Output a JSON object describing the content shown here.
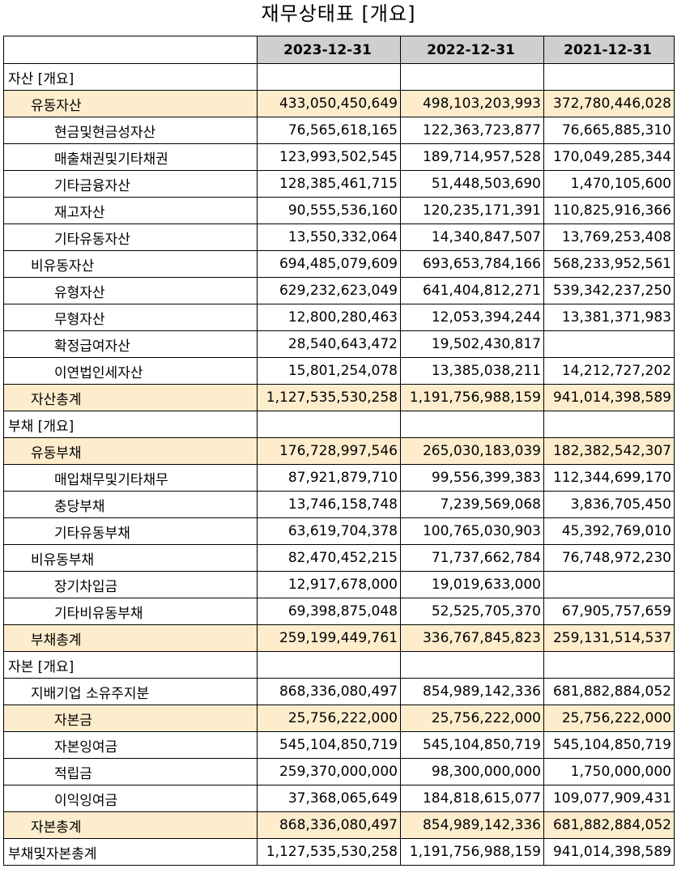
{
  "title": "재무상태표 [개요]",
  "columns": [
    "2023-12-31",
    "2022-12-31",
    "2021-12-31"
  ],
  "rows": [
    {
      "label": "자산 [개요]",
      "level": 0,
      "highlight": false,
      "values": [
        "",
        "",
        ""
      ]
    },
    {
      "label": "유동자산",
      "level": 1,
      "highlight": true,
      "values": [
        "433,050,450,649",
        "498,103,203,993",
        "372,780,446,028"
      ]
    },
    {
      "label": "현금및현금성자산",
      "level": 2,
      "highlight": false,
      "values": [
        "76,565,618,165",
        "122,363,723,877",
        "76,665,885,310"
      ]
    },
    {
      "label": "매출채권및기타채권",
      "level": 2,
      "highlight": false,
      "values": [
        "123,993,502,545",
        "189,714,957,528",
        "170,049,285,344"
      ]
    },
    {
      "label": "기타금융자산",
      "level": 2,
      "highlight": false,
      "values": [
        "128,385,461,715",
        "51,448,503,690",
        "1,470,105,600"
      ]
    },
    {
      "label": "재고자산",
      "level": 2,
      "highlight": false,
      "values": [
        "90,555,536,160",
        "120,235,171,391",
        "110,825,916,366"
      ]
    },
    {
      "label": "기타유동자산",
      "level": 2,
      "highlight": false,
      "values": [
        "13,550,332,064",
        "14,340,847,507",
        "13,769,253,408"
      ]
    },
    {
      "label": "비유동자산",
      "level": 1,
      "highlight": false,
      "values": [
        "694,485,079,609",
        "693,653,784,166",
        "568,233,952,561"
      ]
    },
    {
      "label": "유형자산",
      "level": 2,
      "highlight": false,
      "values": [
        "629,232,623,049",
        "641,404,812,271",
        "539,342,237,250"
      ]
    },
    {
      "label": "무형자산",
      "level": 2,
      "highlight": false,
      "values": [
        "12,800,280,463",
        "12,053,394,244",
        "13,381,371,983"
      ]
    },
    {
      "label": "확정급여자산",
      "level": 2,
      "highlight": false,
      "values": [
        "28,540,643,472",
        "19,502,430,817",
        ""
      ]
    },
    {
      "label": "이연법인세자산",
      "level": 2,
      "highlight": false,
      "values": [
        "15,801,254,078",
        "13,385,038,211",
        "14,212,727,202"
      ]
    },
    {
      "label": "자산총계",
      "level": 1,
      "highlight": true,
      "values": [
        "1,127,535,530,258",
        "1,191,756,988,159",
        "941,014,398,589"
      ]
    },
    {
      "label": "부채 [개요]",
      "level": 0,
      "highlight": false,
      "values": [
        "",
        "",
        ""
      ]
    },
    {
      "label": "유동부채",
      "level": 1,
      "highlight": true,
      "values": [
        "176,728,997,546",
        "265,030,183,039",
        "182,382,542,307"
      ]
    },
    {
      "label": "매입채무및기타채무",
      "level": 2,
      "highlight": false,
      "values": [
        "87,921,879,710",
        "99,556,399,383",
        "112,344,699,170"
      ]
    },
    {
      "label": "충당부채",
      "level": 2,
      "highlight": false,
      "values": [
        "13,746,158,748",
        "7,239,569,068",
        "3,836,705,450"
      ]
    },
    {
      "label": "기타유동부채",
      "level": 2,
      "highlight": false,
      "values": [
        "63,619,704,378",
        "100,765,030,903",
        "45,392,769,010"
      ]
    },
    {
      "label": "비유동부채",
      "level": 1,
      "highlight": false,
      "values": [
        "82,470,452,215",
        "71,737,662,784",
        "76,748,972,230"
      ]
    },
    {
      "label": "장기차입금",
      "level": 2,
      "highlight": false,
      "values": [
        "12,917,678,000",
        "19,019,633,000",
        ""
      ]
    },
    {
      "label": "기타비유동부채",
      "level": 2,
      "highlight": false,
      "values": [
        "69,398,875,048",
        "52,525,705,370",
        "67,905,757,659"
      ]
    },
    {
      "label": "부채총계",
      "level": 1,
      "highlight": true,
      "values": [
        "259,199,449,761",
        "336,767,845,823",
        "259,131,514,537"
      ]
    },
    {
      "label": "자본 [개요]",
      "level": 0,
      "highlight": false,
      "values": [
        "",
        "",
        ""
      ]
    },
    {
      "label": "지배기업 소유주지분",
      "level": 1,
      "highlight": false,
      "values": [
        "868,336,080,497",
        "854,989,142,336",
        "681,882,884,052"
      ]
    },
    {
      "label": "자본금",
      "level": 2,
      "highlight": true,
      "values": [
        "25,756,222,000",
        "25,756,222,000",
        "25,756,222,000"
      ]
    },
    {
      "label": "자본잉여금",
      "level": 2,
      "highlight": false,
      "values": [
        "545,104,850,719",
        "545,104,850,719",
        "545,104,850,719"
      ]
    },
    {
      "label": "적립금",
      "level": 2,
      "highlight": false,
      "values": [
        "259,370,000,000",
        "98,300,000,000",
        "1,750,000,000"
      ]
    },
    {
      "label": "이익잉여금",
      "level": 2,
      "highlight": false,
      "values": [
        "37,368,065,649",
        "184,818,615,077",
        "109,077,909,431"
      ]
    },
    {
      "label": "자본총계",
      "level": 1,
      "highlight": true,
      "values": [
        "868,336,080,497",
        "854,989,142,336",
        "681,882,884,052"
      ]
    },
    {
      "label": "부채및자본총계",
      "level": 0,
      "highlight": false,
      "values": [
        "1,127,535,530,258",
        "1,191,756,988,159",
        "941,014,398,589"
      ]
    }
  ],
  "colors": {
    "header_fill": "#d0cece",
    "highlight_fill": "#fdedcd",
    "border": "#000000"
  }
}
